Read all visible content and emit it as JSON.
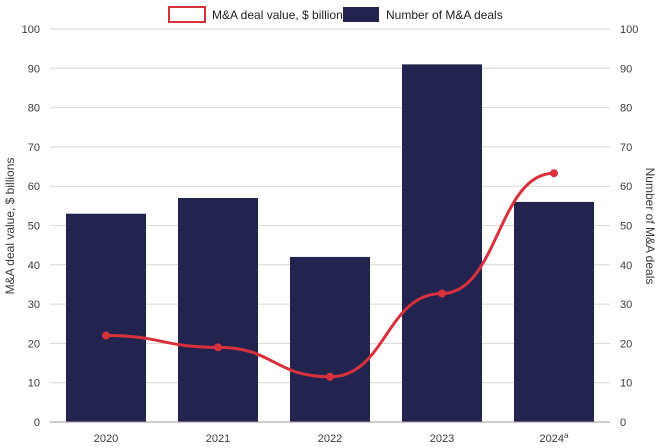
{
  "chart_data": {
    "type": "bar",
    "categories": [
      "2020",
      "2021",
      "2022",
      "2023",
      "2024"
    ],
    "category_superscripts": [
      "",
      "",
      "",
      "",
      "a"
    ],
    "series": [
      {
        "name": "Number of M&A deals",
        "kind": "bar",
        "axis": "right",
        "color": "#23234f",
        "values": [
          53,
          57,
          42,
          91,
          56
        ]
      },
      {
        "name": "M&A deal value, $ billions",
        "kind": "line",
        "axis": "left",
        "color": "#d9313c",
        "values": [
          22,
          19,
          11.5,
          32.7,
          63.3
        ]
      }
    ],
    "left_axis": {
      "label": "M&A deal value, $ billions",
      "min": 0,
      "max": 100,
      "step": 10
    },
    "right_axis": {
      "label": "Number of M&A deals",
      "min": 0,
      "max": 100,
      "step": 10
    },
    "legend_position": "top-center",
    "grid": true
  }
}
